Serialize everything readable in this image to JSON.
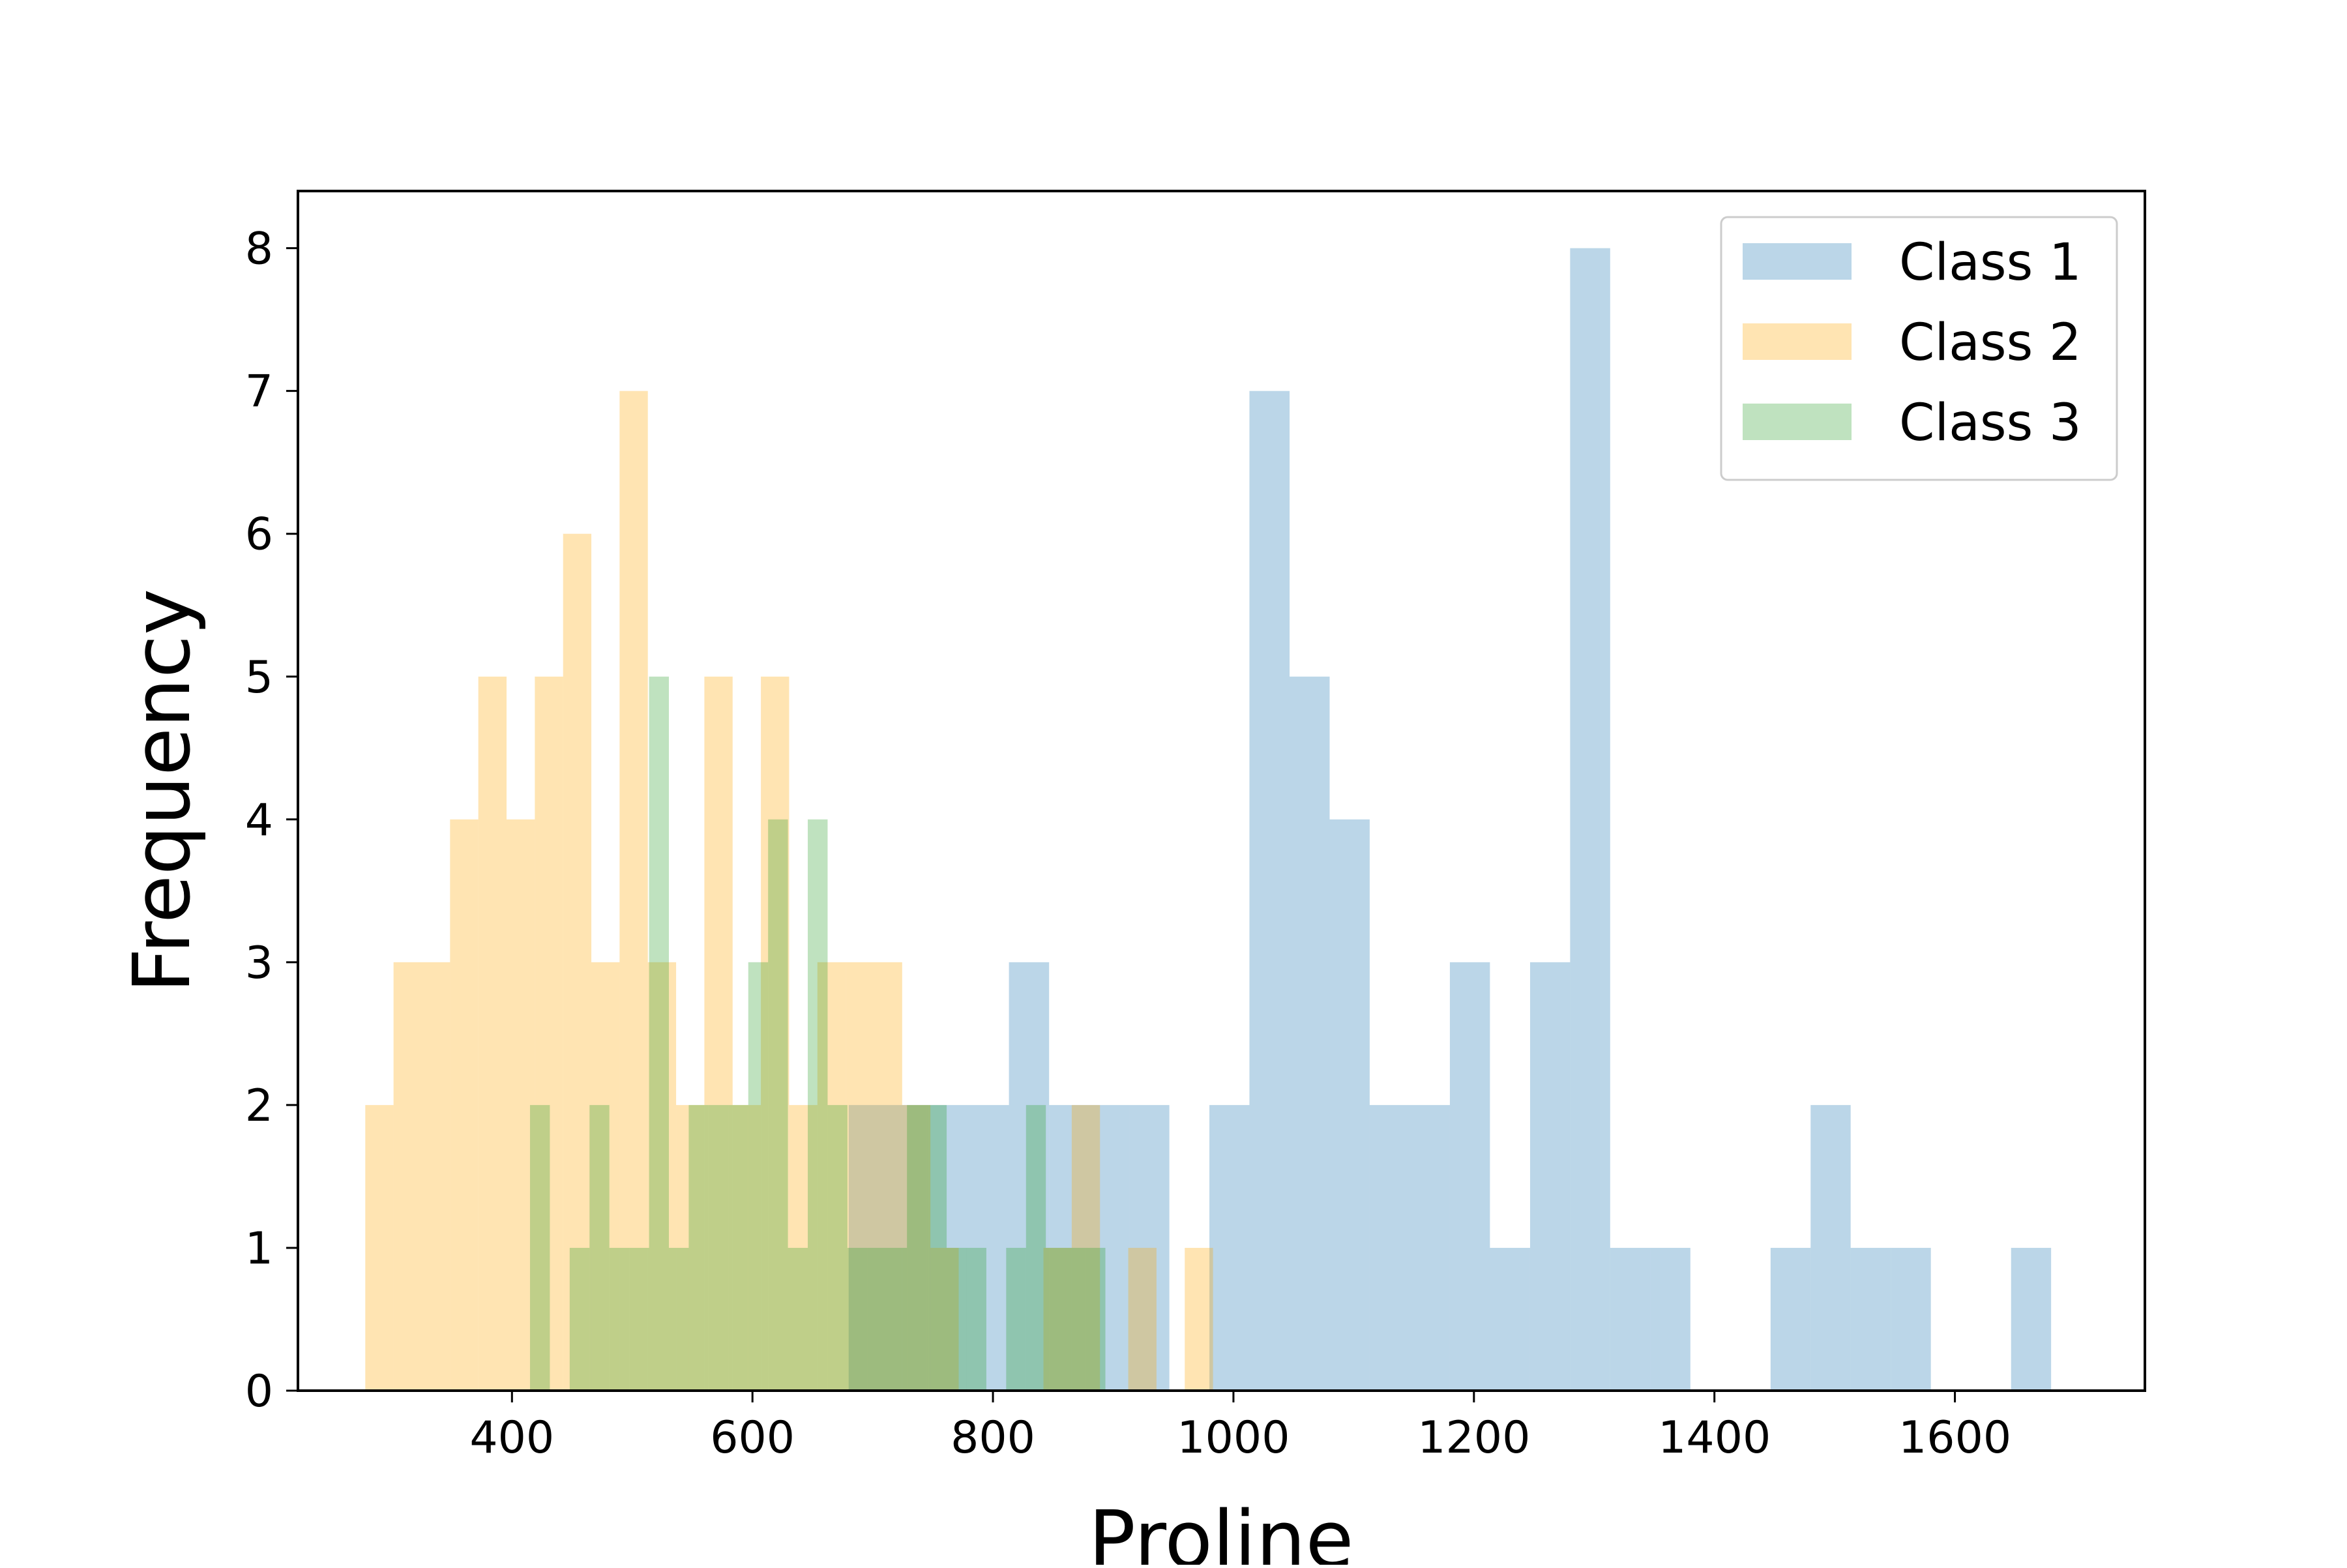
{
  "chart_data": {
    "type": "bar",
    "subtype": "overlaid-histogram",
    "title": "",
    "xlabel": "Proline",
    "ylabel": "Frequency",
    "xlim": [
      222,
      1758
    ],
    "ylim": [
      0,
      8.4
    ],
    "xticks": [
      400,
      600,
      800,
      1000,
      1200,
      1400,
      1600
    ],
    "yticks": [
      0,
      1,
      2,
      3,
      4,
      5,
      6,
      7,
      8
    ],
    "grid": false,
    "legend_position": "top-right",
    "series": [
      {
        "name": "Class 1",
        "color": "#1f77b4",
        "opacity": 0.3,
        "bins": [
          [
            680,
            713.3,
            2
          ],
          [
            713.3,
            746.7,
            2
          ],
          [
            746.7,
            780,
            2
          ],
          [
            780,
            813.3,
            2
          ],
          [
            813.3,
            846.7,
            3
          ],
          [
            846.7,
            880,
            2
          ],
          [
            880,
            913.3,
            2
          ],
          [
            913.3,
            946.7,
            2
          ],
          [
            946.7,
            980,
            0
          ],
          [
            980,
            1013.3,
            2
          ],
          [
            1013.3,
            1046.7,
            7
          ],
          [
            1046.7,
            1080,
            5
          ],
          [
            1080,
            1113.3,
            4
          ],
          [
            1113.3,
            1146.7,
            2
          ],
          [
            1146.7,
            1180,
            2
          ],
          [
            1180,
            1213.3,
            3
          ],
          [
            1213.3,
            1246.7,
            1
          ],
          [
            1246.7,
            1280,
            3
          ],
          [
            1280,
            1313.3,
            8
          ],
          [
            1313.3,
            1346.7,
            1
          ],
          [
            1346.7,
            1380,
            1
          ],
          [
            1380,
            1413.3,
            0
          ],
          [
            1413.3,
            1446.7,
            0
          ],
          [
            1446.7,
            1480,
            1
          ],
          [
            1480,
            1513.3,
            2
          ],
          [
            1513.3,
            1546.7,
            1
          ],
          [
            1546.7,
            1580,
            1
          ],
          [
            1580,
            1613.3,
            0
          ],
          [
            1613.3,
            1646.7,
            0
          ],
          [
            1646.7,
            1680,
            1
          ]
        ]
      },
      {
        "name": "Class 2",
        "color": "#ffa500",
        "opacity": 0.3,
        "bins": [
          [
            278,
            301.5,
            2
          ],
          [
            301.5,
            325,
            3
          ],
          [
            325,
            348.5,
            3
          ],
          [
            348.5,
            372,
            4
          ],
          [
            372,
            395.5,
            5
          ],
          [
            395.5,
            419,
            4
          ],
          [
            419,
            442.5,
            5
          ],
          [
            442.5,
            466,
            6
          ],
          [
            466,
            489.5,
            3
          ],
          [
            489.5,
            513,
            7
          ],
          [
            513,
            536.5,
            3
          ],
          [
            536.5,
            560,
            2
          ],
          [
            560,
            583.5,
            5
          ],
          [
            583.5,
            607,
            2
          ],
          [
            607,
            630.5,
            5
          ],
          [
            630.5,
            654,
            2
          ],
          [
            654,
            677.5,
            3
          ],
          [
            677.5,
            701,
            3
          ],
          [
            701,
            724.5,
            3
          ],
          [
            724.5,
            748,
            2
          ],
          [
            748,
            771.5,
            1
          ],
          [
            771.5,
            795,
            0
          ],
          [
            795,
            818.5,
            0
          ],
          [
            818.5,
            842,
            0
          ],
          [
            842,
            865.5,
            1
          ],
          [
            865.5,
            889,
            2
          ],
          [
            889,
            912.5,
            0
          ],
          [
            912.5,
            936,
            1
          ],
          [
            936,
            959.5,
            0
          ],
          [
            959.5,
            983,
            1
          ]
        ]
      },
      {
        "name": "Class 3",
        "color": "#2ca02c",
        "opacity": 0.3,
        "bins": [
          [
            415,
            431.5,
            2
          ],
          [
            431.5,
            448,
            0
          ],
          [
            448,
            464.5,
            1
          ],
          [
            464.5,
            481,
            2
          ],
          [
            481,
            497.5,
            1
          ],
          [
            497.5,
            514,
            1
          ],
          [
            514,
            530.5,
            5
          ],
          [
            530.5,
            547,
            1
          ],
          [
            547,
            563.5,
            2
          ],
          [
            563.5,
            580,
            2
          ],
          [
            580,
            596.5,
            2
          ],
          [
            596.5,
            613,
            3
          ],
          [
            613,
            629.5,
            4
          ],
          [
            629.5,
            646,
            1
          ],
          [
            646,
            662.5,
            4
          ],
          [
            662.5,
            679,
            2
          ],
          [
            679,
            695.5,
            1
          ],
          [
            695.5,
            712,
            1
          ],
          [
            712,
            728.5,
            1
          ],
          [
            728.5,
            745,
            2
          ],
          [
            745,
            761.5,
            2
          ],
          [
            761.5,
            778,
            1
          ],
          [
            778,
            794.5,
            1
          ],
          [
            794.5,
            811,
            0
          ],
          [
            811,
            827.5,
            1
          ],
          [
            827.5,
            844,
            2
          ],
          [
            844,
            860.5,
            1
          ],
          [
            860.5,
            877,
            1
          ],
          [
            877,
            893.5,
            1
          ],
          [
            893.5,
            910,
            0
          ]
        ]
      }
    ]
  }
}
